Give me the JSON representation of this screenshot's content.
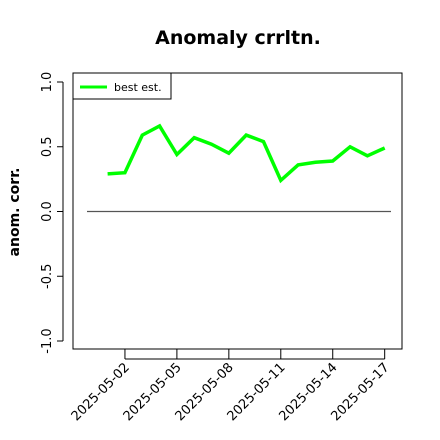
{
  "chart_data": {
    "type": "line",
    "title": "Anomaly crrltn.",
    "ylabel": "anom. corr.",
    "xlabel": "",
    "x": [
      "2025-05-01",
      "2025-05-02",
      "2025-05-03",
      "2025-05-04",
      "2025-05-05",
      "2025-05-06",
      "2025-05-07",
      "2025-05-08",
      "2025-05-09",
      "2025-05-10",
      "2025-05-11",
      "2025-05-12",
      "2025-05-13",
      "2025-05-14",
      "2025-05-15",
      "2025-05-16",
      "2025-05-17"
    ],
    "x_ticks": [
      "2025-05-02",
      "2025-05-05",
      "2025-05-08",
      "2025-05-11",
      "2025-05-14",
      "2025-05-17"
    ],
    "y_ticks": [
      "-1.0",
      "-0.5",
      "0.0",
      "0.5",
      "1.0"
    ],
    "ylim": [
      -1.0,
      1.0
    ],
    "xlim": [
      "2025-04-29",
      "2025-05-18"
    ],
    "reference_line": 0.0,
    "grid": false,
    "legend_position": "top-left",
    "series": [
      {
        "name": "best est.",
        "color": "#00ff00",
        "values": [
          0.29,
          0.3,
          0.59,
          0.66,
          0.44,
          0.57,
          0.52,
          0.45,
          0.59,
          0.54,
          0.24,
          0.36,
          0.38,
          0.39,
          0.5,
          0.43,
          0.49
        ]
      }
    ],
    "reference_color": "#555555"
  }
}
